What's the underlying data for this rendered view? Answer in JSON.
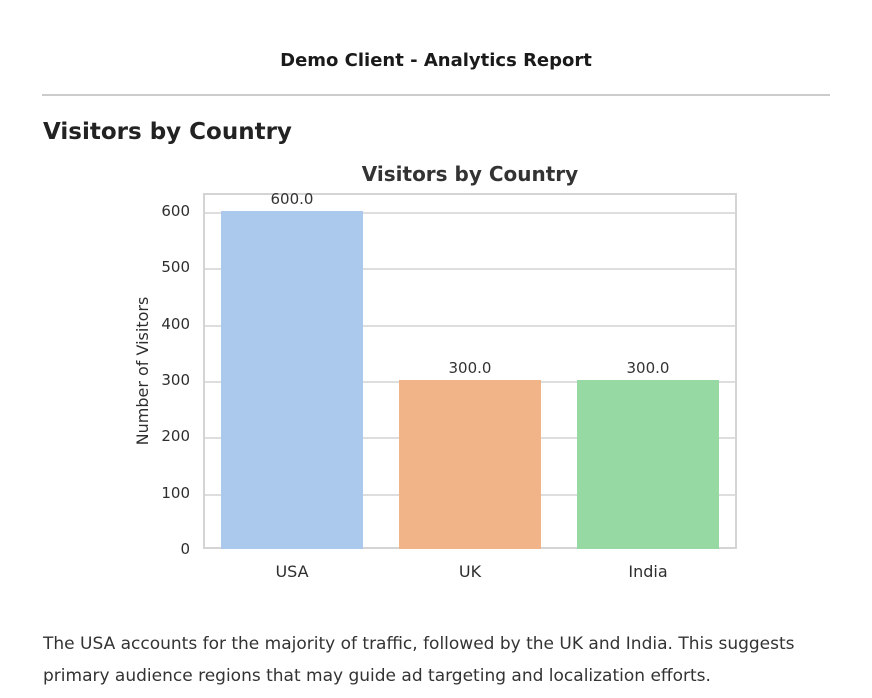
{
  "page": {
    "header_title": "Demo Client - Analytics Report",
    "section_title": "Visitors by Country",
    "summary": "The USA accounts for the majority of traffic, followed by the UK and India. This suggests primary audience regions that may guide ad targeting and localization efforts."
  },
  "chart_data": {
    "type": "bar",
    "title": "Visitors by Country",
    "categories": [
      "USA",
      "UK",
      "India"
    ],
    "values": [
      600,
      300,
      300
    ],
    "bar_labels": [
      "600.0",
      "300.0",
      "300.0"
    ],
    "bar_colors": [
      "#aac9ec",
      "#f1b388",
      "#96d9a2"
    ],
    "xlabel": "",
    "ylabel": "Number of Visitors",
    "ylim": [
      0,
      632
    ],
    "yticks": [
      0,
      100,
      200,
      300,
      400,
      500,
      600
    ],
    "grid": "horizontal-only",
    "legend": "none",
    "colors": {
      "gridline": "#dedede",
      "spine": "#d4d4d4",
      "text": "#333333"
    }
  }
}
